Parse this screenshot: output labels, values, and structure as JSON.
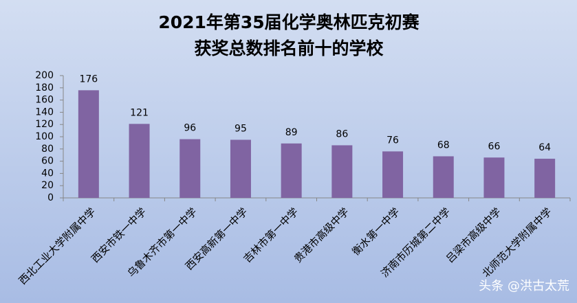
{
  "chart_data": {
    "type": "bar",
    "title": [
      "2021年第35届化学奥林匹克初赛",
      "获奖总数排名前十的学校"
    ],
    "categories": [
      "西北工业大学附属中学",
      "西安市铁一中学",
      "乌鲁木齐市第一中学",
      "西安高新第一中学",
      "吉林市第一中学",
      "贵港市高级中学",
      "衡水第一中学",
      "济南市历城第二中学",
      "吕梁市高级中学",
      "北师范大学附属中学"
    ],
    "values": [
      176,
      121,
      96,
      95,
      89,
      86,
      76,
      68,
      66,
      64
    ],
    "color": "#8064a2",
    "ylim": [
      0,
      200
    ],
    "yticks": [
      0,
      20,
      40,
      60,
      80,
      100,
      120,
      140,
      160,
      180,
      200
    ],
    "grid": false,
    "watermark": "头条 @洪古太荒"
  }
}
